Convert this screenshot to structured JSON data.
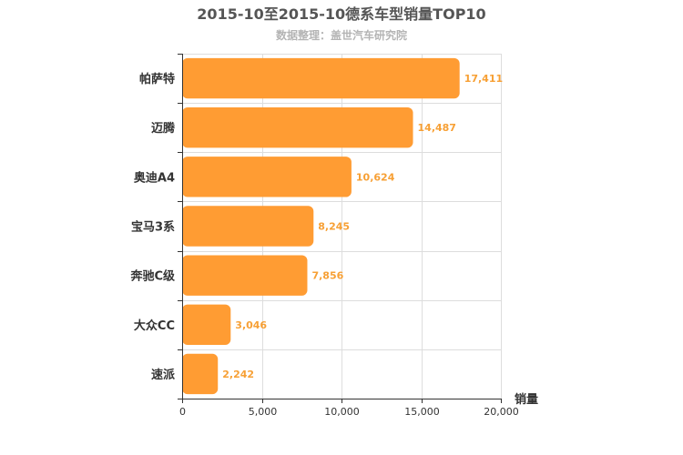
{
  "chart_data": {
    "type": "bar",
    "orientation": "horizontal",
    "title": "2015-10至2015-10德系车型销量TOP10",
    "subtitle": "数据整理：盖世汽车研究院",
    "xlabel": "销量",
    "ylabel": "",
    "categories": [
      "帕萨特",
      "迈腾",
      "奥迪A4",
      "宝马3系",
      "奔驰C级",
      "大众CC",
      "速派"
    ],
    "values": [
      17411,
      14487,
      10624,
      8245,
      7856,
      3046,
      2242
    ],
    "value_labels": [
      "17,411",
      "14,487",
      "10,624",
      "8,245",
      "7,856",
      "3,046",
      "2,242"
    ],
    "xlim": [
      0,
      20000
    ],
    "xticks": [
      0,
      5000,
      10000,
      15000,
      20000
    ],
    "xtick_labels": [
      "0",
      "5,000",
      "10,000",
      "15,000",
      "20,000"
    ],
    "grid": true,
    "bar_color": "#ff9c33",
    "label_color": "#f7a035"
  }
}
